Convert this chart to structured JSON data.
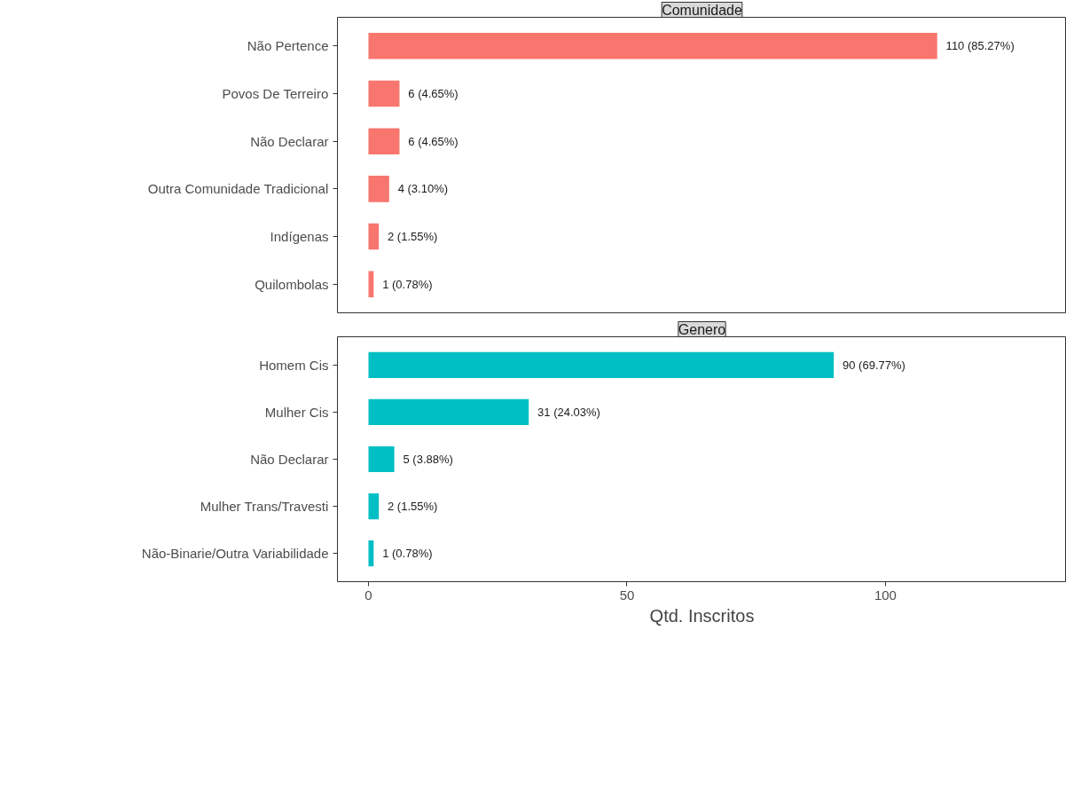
{
  "chart_data": [
    {
      "type": "bar",
      "orientation": "horizontal",
      "title": "Comunidade",
      "categories": [
        "Não Pertence",
        "Povos De Terreiro",
        "Não Declarar",
        "Outra Comunidade Tradicional",
        "Indígenas",
        "Quilombolas"
      ],
      "values": [
        110,
        6,
        6,
        4,
        2,
        1
      ],
      "color": "#f8766d",
      "value_labels": [
        "110 (85.27%)",
        "6 (4.65%)",
        "6 (4.65%)",
        "4 (3.10%)",
        "2 (1.55%)",
        "1 (0.78%)"
      ],
      "xlim": [
        -6,
        135
      ],
      "xticks": [
        0,
        50,
        100
      ],
      "tick_labels": "y",
      "grid": false
    },
    {
      "type": "bar",
      "orientation": "horizontal",
      "title": "Genero",
      "categories": [
        "Homem Cis",
        "Mulher Cis",
        "Não Declarar",
        "Mulher Trans/Travesti",
        "Não-Binarie/Outra Variabilidade"
      ],
      "values": [
        90,
        31,
        5,
        2,
        1
      ],
      "color": "#00bfc4",
      "value_labels": [
        "90 (69.77%)",
        "31 (24.03%)",
        "5 (3.88%)",
        "2 (1.55%)",
        "1 (0.78%)"
      ],
      "xlim": [
        -6,
        135
      ],
      "xticks": [
        0,
        50,
        100
      ],
      "xlabel": "Qtd. Inscritos",
      "grid": false
    }
  ]
}
